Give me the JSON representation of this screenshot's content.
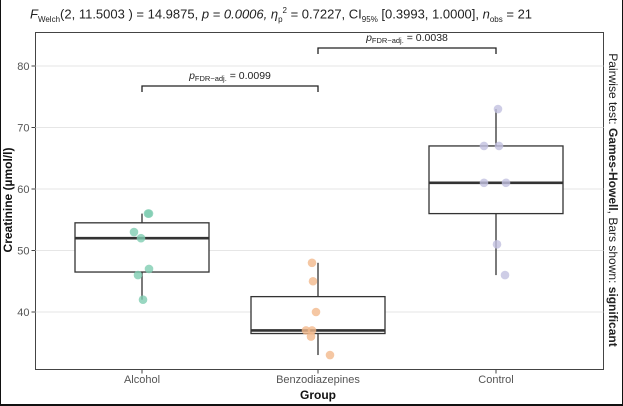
{
  "chart_data": {
    "type": "boxplot",
    "subtitle": {
      "f_label": "F",
      "f_sub": "Welch",
      "f_args": "(2, 11.5003 ) = 14.9875, ",
      "p_text": "p = 0.0006, ",
      "eta_label": "η",
      "eta_sub": "p",
      "eta_sup": "2",
      "eta_text": " = 0.7227, CI",
      "ci_sub": "95%",
      "ci_text": " [0.3993, 1.0000], ",
      "n_label": "n",
      "n_sub": "obs",
      "n_text": " = 21"
    },
    "xlabel": "Group",
    "ylabel": "Creatinine (µmol/l)",
    "caption_parts": [
      "Pairwise test: ",
      "Games-Howell",
      ", Bars shown: ",
      "significant"
    ],
    "categories": [
      "Alcohol",
      "Benzodiazepines",
      "Control"
    ],
    "ylim": [
      30,
      85
    ],
    "yticks": [
      40,
      50,
      60,
      70,
      80
    ],
    "grid": true,
    "colors": [
      "#7fcdb1",
      "#f2b98c",
      "#c2c0e0"
    ],
    "boxes": [
      {
        "name": "Alcohol",
        "whisker_low": 42,
        "q1": 46.5,
        "median": 52,
        "q3": 54.5,
        "whisker_high": 56,
        "points": [
          56,
          56,
          53,
          52,
          47,
          46,
          42
        ],
        "jitter": [
          6,
          7,
          -8,
          -1,
          7,
          -4,
          1
        ]
      },
      {
        "name": "Benzodiazepines",
        "whisker_low": 33,
        "q1": 36.5,
        "median": 37,
        "q3": 42.5,
        "whisker_high": 48,
        "points": [
          48,
          45,
          40,
          37,
          37,
          36,
          33
        ],
        "jitter": [
          -6,
          -5,
          -2,
          -12,
          -6,
          -7,
          12
        ]
      },
      {
        "name": "Control",
        "whisker_low": 46,
        "q1": 56,
        "median": 61,
        "q3": 67,
        "whisker_high": 73,
        "points": [
          73,
          67,
          67,
          61,
          61,
          51,
          46
        ],
        "jitter": [
          2,
          -12,
          3,
          -12,
          10,
          1,
          9
        ]
      }
    ],
    "comparisons": [
      {
        "from": "Alcohol",
        "to": "Benzodiazepines",
        "label_p": "p",
        "label_sub": "FDR−adj.",
        "label_value": " = 0.0099",
        "y": 77,
        "tier": 0
      },
      {
        "from": "Benzodiazepines",
        "to": "Control",
        "label_p": "p",
        "label_sub": "FDR−adj.",
        "label_value": " = 0.0038",
        "y": 83,
        "tier": 1
      }
    ]
  }
}
